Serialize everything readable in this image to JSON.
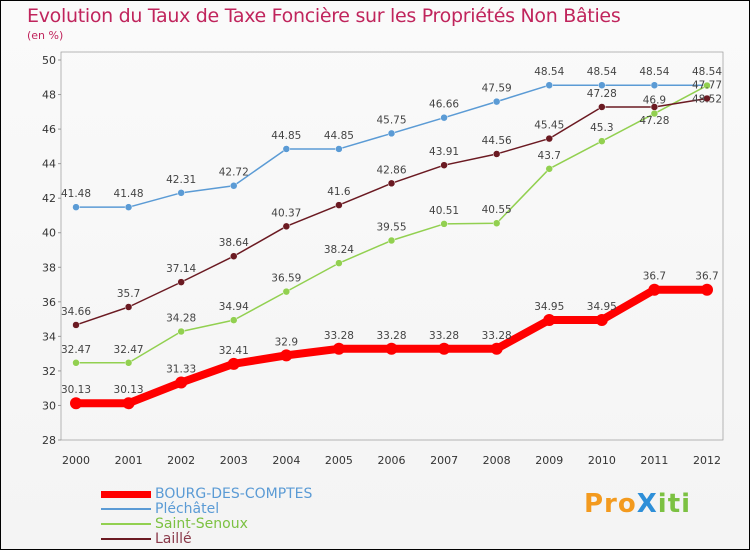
{
  "chart_data": {
    "type": "line",
    "title": "Evolution du Taux de Taxe Foncière sur les Propriétés Non Bâties",
    "ylabel": "(en %)",
    "xlabel": "",
    "ylim": [
      28,
      50
    ],
    "yticks": [
      28,
      30,
      32,
      34,
      36,
      38,
      40,
      42,
      44,
      46,
      48,
      50
    ],
    "x": [
      2000,
      2001,
      2002,
      2003,
      2004,
      2005,
      2006,
      2007,
      2008,
      2009,
      2010,
      2011,
      2012
    ],
    "grid": false,
    "legend": "bottom-left",
    "series": [
      {
        "name": "Pléchâtel",
        "color": "#5b9bd5",
        "width": 1.5,
        "values": [
          41.48,
          41.48,
          42.31,
          42.72,
          44.85,
          44.85,
          45.75,
          46.66,
          47.59,
          48.54,
          48.54,
          48.54,
          48.54
        ]
      },
      {
        "name": "Saint-Senoux",
        "color": "#92d050",
        "width": 1.5,
        "values": [
          32.47,
          32.47,
          34.28,
          34.94,
          36.59,
          38.24,
          39.55,
          40.51,
          40.55,
          43.7,
          45.3,
          46.9,
          48.52
        ]
      },
      {
        "name": "Laillé",
        "color": "#6b1a22",
        "width": 1.5,
        "values": [
          34.66,
          35.7,
          37.14,
          38.64,
          40.37,
          41.6,
          42.86,
          43.91,
          44.56,
          45.45,
          47.28,
          47.28,
          47.77
        ]
      },
      {
        "name": "BOURG-DES-COMPTES",
        "color": "#ff0000",
        "width": 8,
        "values": [
          30.13,
          30.13,
          31.33,
          32.41,
          32.9,
          33.28,
          33.28,
          33.28,
          33.28,
          34.95,
          34.95,
          36.7,
          36.7
        ]
      }
    ]
  },
  "logo": "ProXiti"
}
